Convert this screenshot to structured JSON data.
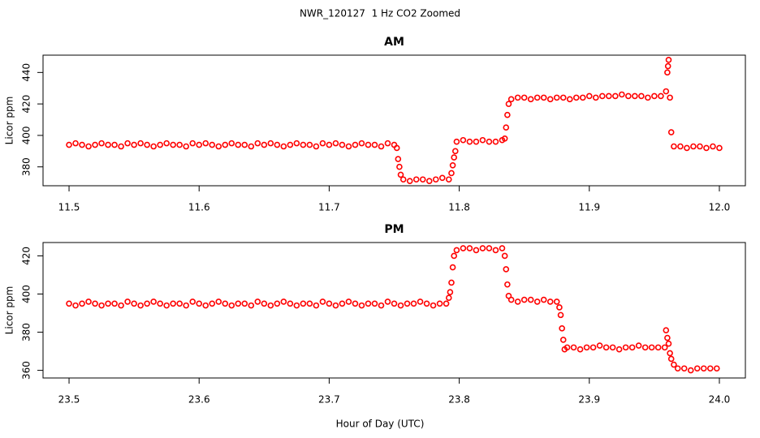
{
  "title": "NWR_120127  1 Hz CO2 Zoomed",
  "xlabel": "Hour of Day (UTC)",
  "chart_data": [
    {
      "type": "scatter",
      "title": "AM",
      "ylabel": "Licor ppm",
      "color": "#ff0000",
      "xlim": [
        11.48,
        12.02
      ],
      "ylim": [
        368,
        451
      ],
      "xticks": [
        11.5,
        11.6,
        11.7,
        11.8,
        11.9,
        {
          "value": 12,
          "label": "12.0"
        }
      ],
      "yticks": [
        380,
        400,
        420,
        440
      ],
      "x": [
        11.5,
        11.505,
        11.51,
        11.515,
        11.52,
        11.525,
        11.53,
        11.535,
        11.54,
        11.545,
        11.55,
        11.555,
        11.56,
        11.565,
        11.57,
        11.575,
        11.58,
        11.585,
        11.59,
        11.595,
        11.6,
        11.605,
        11.61,
        11.615,
        11.62,
        11.625,
        11.63,
        11.635,
        11.64,
        11.645,
        11.65,
        11.655,
        11.66,
        11.665,
        11.67,
        11.675,
        11.68,
        11.685,
        11.69,
        11.695,
        11.7,
        11.705,
        11.71,
        11.715,
        11.72,
        11.725,
        11.73,
        11.735,
        11.74,
        11.745,
        11.75,
        11.752,
        11.753,
        11.754,
        11.755,
        11.757,
        11.762,
        11.767,
        11.772,
        11.777,
        11.782,
        11.787,
        11.792,
        11.794,
        11.795,
        11.796,
        11.797,
        11.798,
        11.803,
        11.808,
        11.813,
        11.818,
        11.823,
        11.828,
        11.833,
        11.835,
        11.836,
        11.837,
        11.838,
        11.84,
        11.845,
        11.85,
        11.855,
        11.86,
        11.865,
        11.87,
        11.875,
        11.88,
        11.885,
        11.89,
        11.895,
        11.9,
        11.905,
        11.91,
        11.915,
        11.92,
        11.925,
        11.93,
        11.935,
        11.94,
        11.945,
        11.95,
        11.955,
        11.959,
        11.96,
        11.9605,
        11.961,
        11.962,
        11.963,
        11.965,
        11.97,
        11.975,
        11.98,
        11.985,
        11.99,
        11.995,
        12.0
      ],
      "values": [
        394,
        395,
        394,
        393,
        394,
        395,
        394,
        394,
        393,
        395,
        394,
        395,
        394,
        393,
        394,
        395,
        394,
        394,
        393,
        395,
        394,
        395,
        394,
        393,
        394,
        395,
        394,
        394,
        393,
        395,
        394,
        395,
        394,
        393,
        394,
        395,
        394,
        394,
        393,
        395,
        394,
        395,
        394,
        393,
        394,
        395,
        394,
        394,
        393,
        395,
        394,
        392,
        385,
        380,
        375,
        372,
        371,
        372,
        372,
        371,
        372,
        373,
        372,
        376,
        381,
        386,
        390,
        396,
        397,
        396,
        396,
        397,
        396,
        396,
        397,
        398,
        405,
        413,
        420,
        423,
        424,
        424,
        423,
        424,
        424,
        423,
        424,
        424,
        423,
        424,
        424,
        425,
        424,
        425,
        425,
        425,
        426,
        425,
        425,
        425,
        424,
        425,
        425,
        428,
        440,
        444,
        448,
        424,
        402,
        393,
        393,
        392,
        393,
        393,
        392,
        393,
        392
      ]
    },
    {
      "type": "scatter",
      "title": "PM",
      "ylabel": "Licor ppm",
      "color": "#ff0000",
      "xlim": [
        23.48,
        24.02
      ],
      "ylim": [
        356,
        427
      ],
      "xticks": [
        23.5,
        23.6,
        23.7,
        23.8,
        23.9,
        {
          "value": 24,
          "label": "24.0"
        }
      ],
      "yticks": [
        360,
        380,
        400,
        420
      ],
      "x": [
        23.5,
        23.505,
        23.51,
        23.515,
        23.52,
        23.525,
        23.53,
        23.535,
        23.54,
        23.545,
        23.55,
        23.555,
        23.56,
        23.565,
        23.57,
        23.575,
        23.58,
        23.585,
        23.59,
        23.595,
        23.6,
        23.605,
        23.61,
        23.615,
        23.62,
        23.625,
        23.63,
        23.635,
        23.64,
        23.645,
        23.65,
        23.655,
        23.66,
        23.665,
        23.67,
        23.675,
        23.68,
        23.685,
        23.69,
        23.695,
        23.7,
        23.705,
        23.71,
        23.715,
        23.72,
        23.725,
        23.73,
        23.735,
        23.74,
        23.745,
        23.75,
        23.755,
        23.76,
        23.765,
        23.77,
        23.775,
        23.78,
        23.785,
        23.79,
        23.792,
        23.793,
        23.794,
        23.795,
        23.796,
        23.798,
        23.803,
        23.808,
        23.813,
        23.818,
        23.823,
        23.828,
        23.833,
        23.835,
        23.836,
        23.837,
        23.838,
        23.84,
        23.845,
        23.85,
        23.855,
        23.86,
        23.865,
        23.87,
        23.875,
        23.877,
        23.878,
        23.879,
        23.88,
        23.881,
        23.883,
        23.888,
        23.893,
        23.898,
        23.903,
        23.908,
        23.913,
        23.918,
        23.923,
        23.928,
        23.933,
        23.938,
        23.943,
        23.948,
        23.953,
        23.958,
        23.959,
        23.96,
        23.961,
        23.962,
        23.963,
        23.965,
        23.968,
        23.973,
        23.978,
        23.983,
        23.988,
        23.993,
        23.998
      ],
      "values": [
        395,
        394,
        395,
        396,
        395,
        394,
        395,
        395,
        394,
        396,
        395,
        394,
        395,
        396,
        395,
        394,
        395,
        395,
        394,
        396,
        395,
        394,
        395,
        396,
        395,
        394,
        395,
        395,
        394,
        396,
        395,
        394,
        395,
        396,
        395,
        394,
        395,
        395,
        394,
        396,
        395,
        394,
        395,
        396,
        395,
        394,
        395,
        395,
        394,
        396,
        395,
        394,
        395,
        395,
        396,
        395,
        394,
        395,
        395,
        398,
        401,
        406,
        414,
        420,
        423,
        424,
        424,
        423,
        424,
        424,
        423,
        424,
        420,
        413,
        405,
        399,
        397,
        396,
        397,
        397,
        396,
        397,
        396,
        396,
        393,
        389,
        382,
        376,
        371,
        372,
        372,
        371,
        372,
        372,
        373,
        372,
        372,
        371,
        372,
        372,
        373,
        372,
        372,
        372,
        372,
        381,
        377,
        374,
        369,
        366,
        363,
        361,
        361,
        360,
        361,
        361,
        361,
        361
      ]
    }
  ]
}
